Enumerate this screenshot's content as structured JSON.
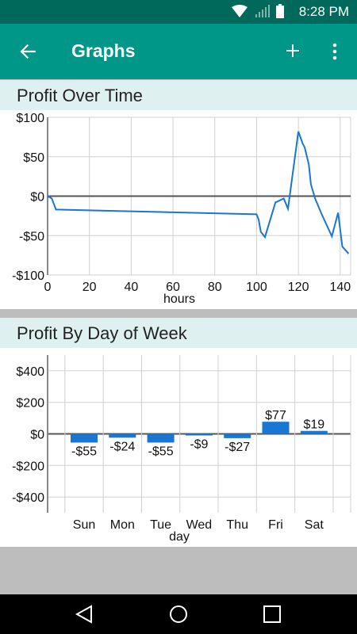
{
  "status_bar": {
    "time": "8:28 PM"
  },
  "app_bar": {
    "title": "Graphs",
    "back_icon": "arrow-left-icon",
    "add_icon": "plus-icon",
    "more_icon": "more-vert-icon"
  },
  "section1": {
    "title": "Profit Over Time"
  },
  "section2": {
    "title": "Profit By Day of Week"
  },
  "chart_data": [
    {
      "type": "line",
      "title": "Profit Over Time",
      "xlabel": "hours",
      "ylabel": "",
      "xlim": [
        0,
        145
      ],
      "ylim": [
        -100,
        100
      ],
      "x_ticks": [
        0,
        20,
        40,
        60,
        80,
        100,
        120,
        140
      ],
      "y_ticks": [
        100,
        50,
        0,
        -50,
        -100
      ],
      "y_tick_labels": [
        "$100",
        "$50",
        "$0",
        "-$50",
        "-$100"
      ],
      "grid": true,
      "color": "#1976d2",
      "series": [
        {
          "x": [
            0,
            2,
            4,
            100,
            101,
            102,
            104,
            109,
            113,
            115,
            120,
            122,
            123,
            125,
            126,
            128,
            131,
            136,
            139,
            141,
            144
          ],
          "y": [
            0,
            -3,
            -17,
            -23,
            -30,
            -45,
            -52,
            -8,
            -3,
            -16,
            82,
            67,
            62,
            40,
            15,
            -3,
            -22,
            -51,
            -21,
            -64,
            -73
          ]
        }
      ]
    },
    {
      "type": "bar",
      "title": "Profit By Day of Week",
      "xlabel": "day",
      "ylabel": "",
      "categories": [
        "Sun",
        "Mon",
        "Tue",
        "Wed",
        "Thu",
        "Fri",
        "Sat"
      ],
      "values": [
        -55,
        -24,
        -55,
        -9,
        -27,
        77,
        19
      ],
      "value_labels": [
        "-$55",
        "-$24",
        "-$55",
        "-$9",
        "-$27",
        "$77",
        "$19"
      ],
      "ylim": [
        -500,
        500
      ],
      "y_ticks": [
        400,
        200,
        0,
        -200,
        -400
      ],
      "y_tick_labels": [
        "$400",
        "$200",
        "$0",
        "-$200",
        "-$400"
      ],
      "grid": true,
      "color": "#1976d2"
    }
  ],
  "nav_bar": {
    "back_icon": "nav-back-icon",
    "home_icon": "nav-home-icon",
    "recents_icon": "nav-recents-icon"
  }
}
